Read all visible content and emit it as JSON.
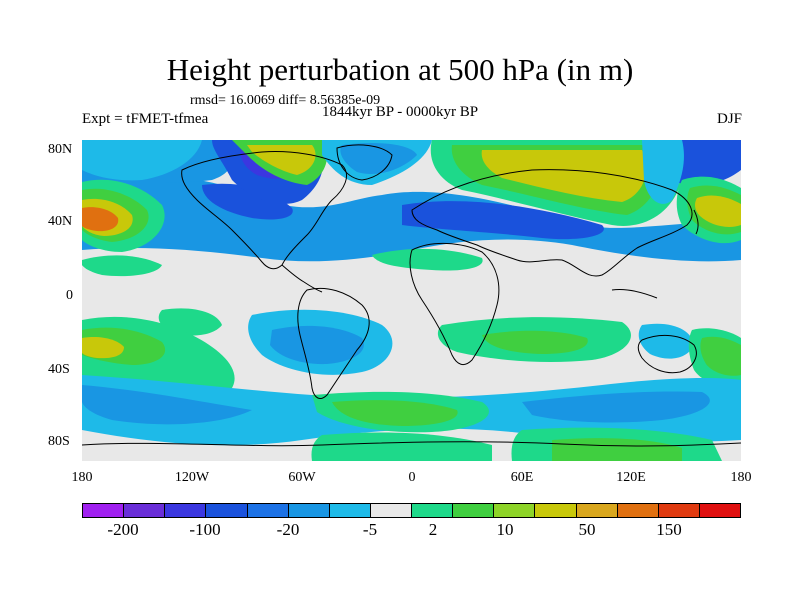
{
  "title": "Height perturbation at 500 hPa (in m)",
  "stats": "rmsd= 16.0069 diff= 8.56385e-09",
  "left_label": "Expt = tFMET-tfmea",
  "center_label": "1844kyr BP - 0000kyr BP",
  "right_label": "DJF",
  "lat_labels": [
    "80N",
    "40N",
    "0",
    "40S",
    "80S"
  ],
  "lon_labels": [
    "180",
    "120W",
    "60W",
    "0",
    "60E",
    "120E",
    "180"
  ],
  "colorbar": {
    "colors": [
      "#a020f0",
      "#6a2ed8",
      "#3b37e0",
      "#1a52dc",
      "#1c72e6",
      "#1996e3",
      "#1ebae8",
      "#e8e8e8",
      "#1ed98a",
      "#40cf40",
      "#8ed428",
      "#c8c80a",
      "#d9a71e",
      "#e07010",
      "#e03a10",
      "#e01010"
    ],
    "labels": [
      "-200",
      "-100",
      "-20",
      "-5",
      "2",
      "10",
      "50",
      "150"
    ]
  },
  "map_colors": {
    "background": "#e8e8e8",
    "neg_light": "#1ebae8",
    "neg_mid": "#1996e3",
    "neg_dark": "#1a52dc",
    "neg_deep": "#3b37e0",
    "pos_light": "#1ed98a",
    "pos_mid": "#40cf40",
    "pos_yellow": "#c8c80a",
    "pos_orange": "#e07010",
    "coast": "#000000"
  }
}
